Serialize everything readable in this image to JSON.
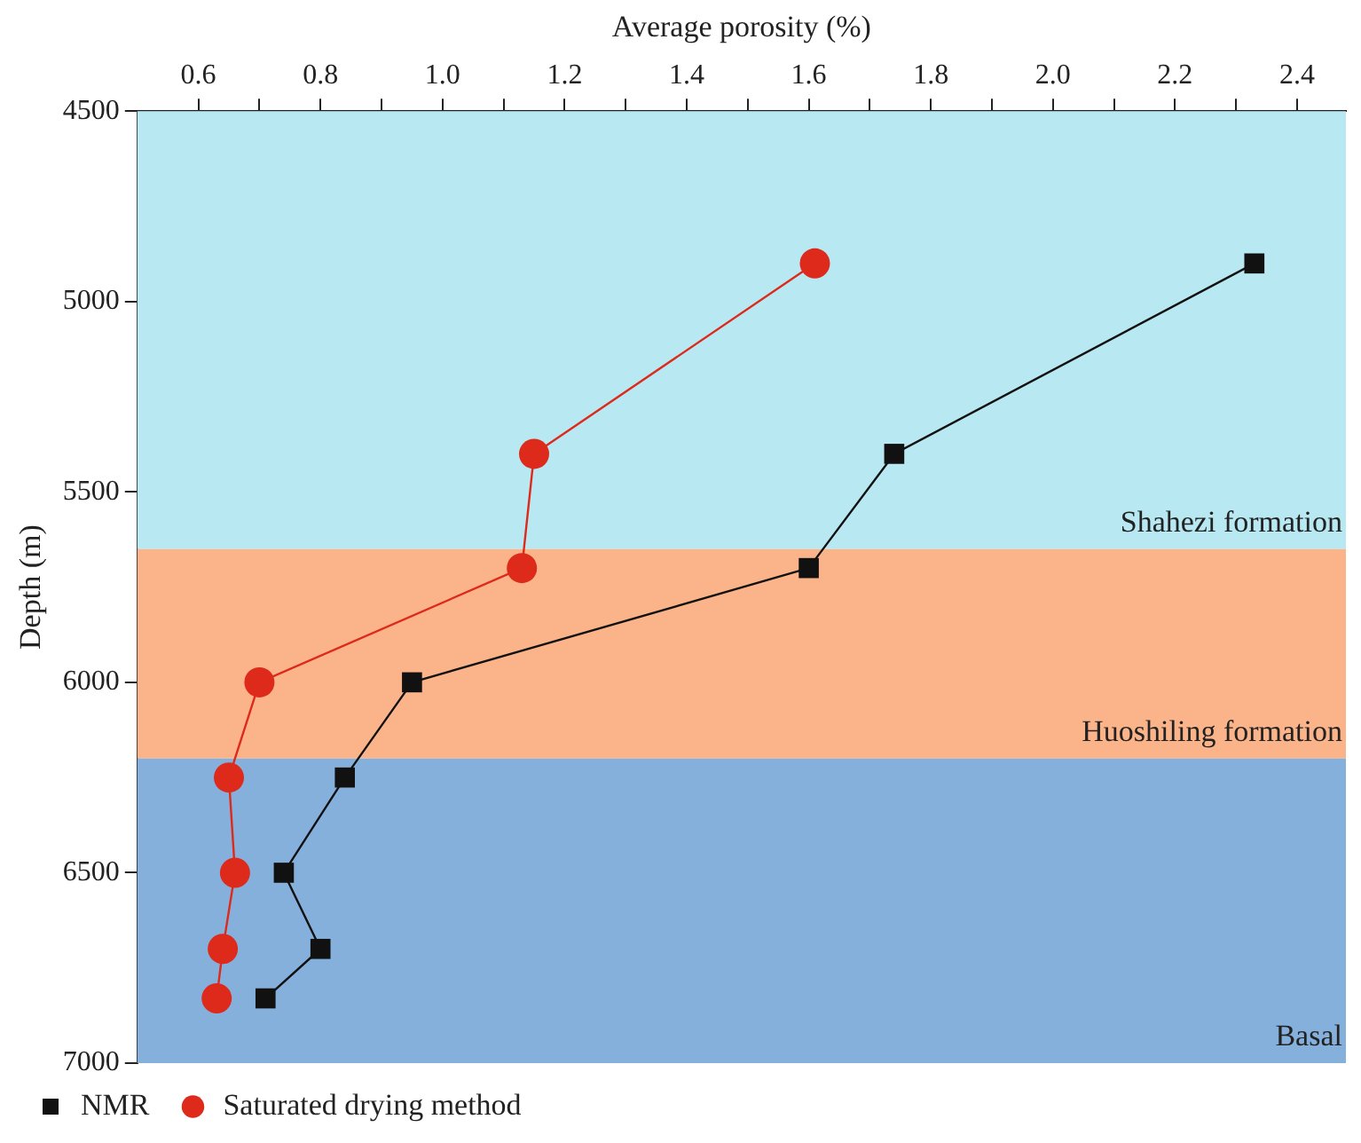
{
  "chart_data": {
    "type": "line",
    "xlabel": "Average porosity (%)",
    "ylabel": "Depth (m)",
    "xlim": [
      0.5,
      2.48
    ],
    "ylim": [
      7000,
      4500
    ],
    "xticks": [
      0.6,
      {
        "value": 0.7,
        "label": null
      },
      0.8,
      {
        "value": 0.9,
        "label": null
      },
      {
        "value": 1.0,
        "label": "1.0"
      },
      {
        "value": 1.1,
        "label": null
      },
      1.2,
      {
        "value": 1.3,
        "label": null
      },
      1.4,
      {
        "value": 1.5,
        "label": null
      },
      1.6,
      {
        "value": 1.7,
        "label": null
      },
      1.8,
      {
        "value": 1.9,
        "label": null
      },
      {
        "value": 2.0,
        "label": "2.0"
      },
      {
        "value": 2.1,
        "label": null
      },
      2.2,
      {
        "value": 2.3,
        "label": null
      },
      2.4
    ],
    "yticks": [
      4500,
      5000,
      5500,
      6000,
      6500,
      7000
    ],
    "series": [
      {
        "name": "NMR",
        "color": "#111111",
        "marker": "square",
        "x": [
          2.33,
          1.74,
          1.6,
          0.95,
          0.84,
          0.74,
          0.8,
          0.71
        ],
        "values": [
          4900,
          5400,
          5700,
          6000,
          6250,
          6500,
          6700,
          6830
        ]
      },
      {
        "name": "Saturated drying method",
        "color": "#dd2a1b",
        "marker": "circle",
        "x": [
          1.61,
          1.15,
          1.13,
          0.7,
          0.65,
          0.66,
          0.64,
          0.63
        ],
        "values": [
          4900,
          5400,
          5700,
          6000,
          6250,
          6500,
          6700,
          6830
        ]
      }
    ],
    "bands": [
      {
        "axis": "y",
        "from": 4500,
        "to": 5650,
        "label": "Shahezi formation",
        "color": "#b8e8f2"
      },
      {
        "axis": "y",
        "from": 5650,
        "to": 6200,
        "label": "Huoshiling formation",
        "color": "#fbb48a"
      },
      {
        "axis": "y",
        "from": 6200,
        "to": 7000,
        "label": "Basal",
        "color": "#86b0dc"
      }
    ],
    "grid": false,
    "legend": "bottom left",
    "line_style": "solid"
  }
}
